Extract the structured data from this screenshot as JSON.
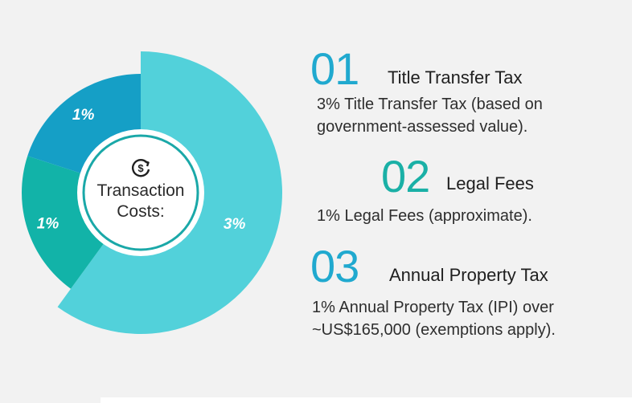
{
  "colors": {
    "cyan": "#52d1da",
    "blue": "#159fc6",
    "teal": "#12b3a8",
    "num_blue": "#20a9cf",
    "num_teal": "#1ab0a6",
    "dark": "#2b2b2b"
  },
  "chart_data": {
    "type": "pie",
    "title": "Transaction Costs:",
    "center_icon": "dollar-cycle-icon",
    "slices": [
      {
        "label": "3%",
        "value": 3,
        "color": "#52d1da"
      },
      {
        "label": "1%",
        "value": 1,
        "color": "#12b3a8"
      },
      {
        "label": "1%",
        "value": 1,
        "color": "#159fc6"
      }
    ]
  },
  "center": {
    "line1": "Transaction",
    "line2": "Costs:"
  },
  "items": [
    {
      "number": "01",
      "heading": "Title Transfer Tax",
      "desc1": "3% Title Transfer Tax (based on",
      "desc2": "government-assessed value)."
    },
    {
      "number": "02",
      "heading": "Legal Fees",
      "desc1": "1% Legal Fees (approximate)."
    },
    {
      "number": "03",
      "heading": "Annual Property Tax",
      "desc1": "1% Annual Property Tax (IPI) over",
      "desc2": "~US$165,000 (exemptions apply)."
    }
  ]
}
